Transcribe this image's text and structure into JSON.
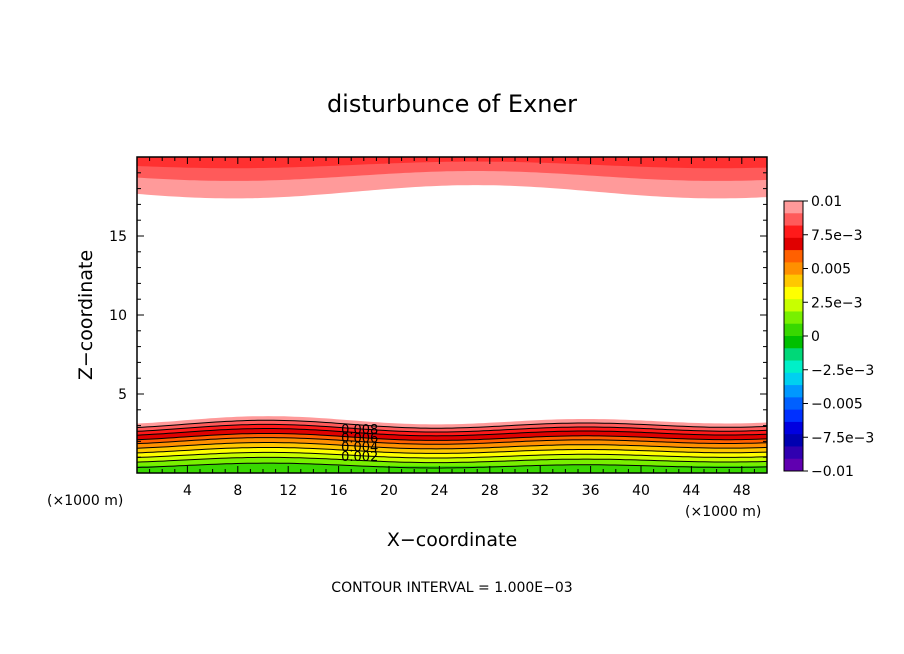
{
  "chart_data": {
    "type": "heatmap",
    "title": "disturbunce of Exner",
    "xlabel": "X−coordinate",
    "ylabel": "Z−coordinate",
    "x_unit": "(×1000 m)",
    "y_unit": "(×1000 m)",
    "xlim": [
      0,
      50
    ],
    "ylim": [
      0,
      20
    ],
    "x_ticks": [
      4,
      8,
      12,
      16,
      20,
      24,
      28,
      32,
      36,
      40,
      44,
      48
    ],
    "y_ticks": [
      5,
      10,
      15
    ],
    "footer": "CONTOUR INTERVAL = 1.000E−03",
    "contour_interval": 0.001,
    "contour_labels": [
      "0.008",
      "0.006",
      "0.004",
      "0.002"
    ],
    "colorbar": {
      "tick_labels": [
        "0.01",
        "7.5e−3",
        "0.005",
        "2.5e−3",
        "0",
        "−2.5e−3",
        "−0.005",
        "−7.5e−3",
        "−0.01"
      ],
      "colors_top_to_bottom": [
        "#ff9a9a",
        "#ff5a5a",
        "#ff1a1a",
        "#e00000",
        "#ff6000",
        "#ff9000",
        "#ffc800",
        "#ffff00",
        "#c8ff00",
        "#78f000",
        "#38d800",
        "#00c000",
        "#00d878",
        "#00f0c8",
        "#00d0f0",
        "#0098ff",
        "#0060ff",
        "#0030ff",
        "#0000e0",
        "#0000b0",
        "#3000b0",
        "#6000b0"
      ]
    },
    "bottom_bands": [
      {
        "z": 3.3,
        "color": "#ff9a9a"
      },
      {
        "z": 3.05,
        "color": "#ff5a5a"
      },
      {
        "z": 2.8,
        "color": "#ff1a1a"
      },
      {
        "z": 2.55,
        "color": "#e00000"
      },
      {
        "z": 2.25,
        "color": "#ff6000"
      },
      {
        "z": 2.0,
        "color": "#ff9000"
      },
      {
        "z": 1.7,
        "color": "#ffc800"
      },
      {
        "z": 1.4,
        "color": "#ffff00"
      },
      {
        "z": 1.1,
        "color": "#c8ff00"
      },
      {
        "z": 0.8,
        "color": "#78f000"
      },
      {
        "z": 0.45,
        "color": "#38d800"
      }
    ],
    "top_bands": [
      {
        "z": 17.8,
        "color": "#ff9a9a"
      },
      {
        "z": 18.8,
        "color": "#ff5a5a"
      },
      {
        "z": 19.5,
        "color": "#ff3030"
      }
    ]
  }
}
